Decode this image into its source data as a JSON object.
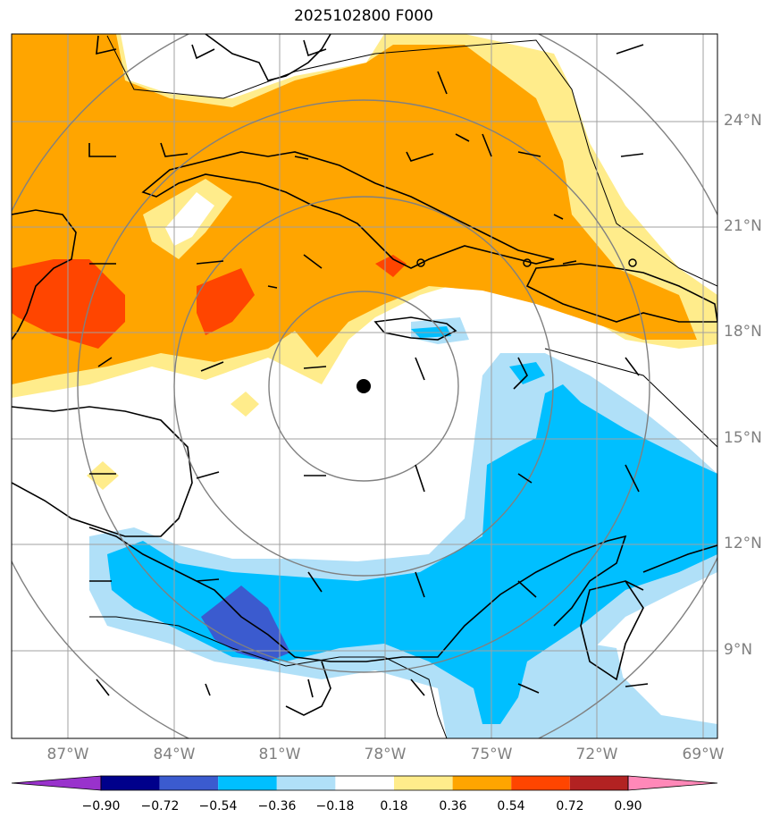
{
  "title": "2025102800 F000",
  "lat_labels": [
    "24°N",
    "21°N",
    "18°N",
    "15°N",
    "12°N",
    "9°N"
  ],
  "lon_labels": [
    "87°W",
    "84°W",
    "81°W",
    "78°W",
    "75°W",
    "72°W",
    "69°W"
  ],
  "colorbar": {
    "ticks": [
      "−0.90",
      "−0.72",
      "−0.54",
      "−0.36",
      "−0.18",
      "0.18",
      "0.36",
      "0.54",
      "0.72",
      "0.90"
    ],
    "colors": [
      "#9932cc",
      "#00008b",
      "#3b5bcf",
      "#00bfff",
      "#b0e0f8",
      "#ffffff",
      "#ffec8b",
      "#ffa500",
      "#ff4500",
      "#b22222",
      "#ff88b8"
    ]
  },
  "storm_center": {
    "lat": "16.5°N",
    "lon": "78.6°W"
  },
  "colors": {
    "border": "#000000",
    "grid": "#a0a0a0",
    "range_rings": "#808080",
    "coast": "#000000"
  }
}
